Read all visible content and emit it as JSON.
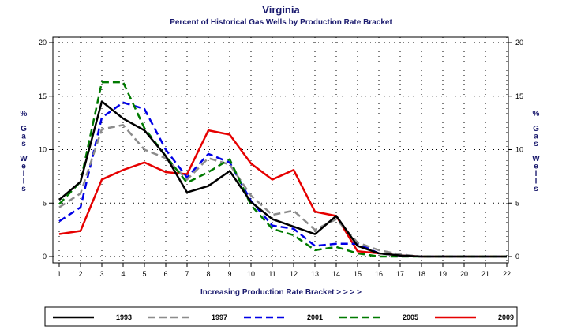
{
  "chart_data": {
    "type": "line",
    "title": "Virginia",
    "subtitle": "Percent of Historical Gas Wells by Production Rate Bracket",
    "xlabel": "Increasing Production Rate Bracket > > > >",
    "ylabel": "% Gas Wells",
    "ylabel_chars": [
      "%",
      "",
      "G",
      "a",
      "s",
      "",
      "W",
      "e",
      "l",
      "l",
      "s"
    ],
    "x": [
      1,
      2,
      3,
      4,
      5,
      6,
      7,
      8,
      9,
      10,
      11,
      12,
      13,
      14,
      15,
      16,
      17,
      18,
      19,
      20,
      21,
      22
    ],
    "xlim": [
      1,
      22
    ],
    "ylim": [
      0,
      20
    ],
    "yticks": [
      0,
      5,
      10,
      15,
      20
    ],
    "grid": true,
    "legend_position": "bottom",
    "series": [
      {
        "name": "1993",
        "color": "#000000",
        "dash": "solid",
        "values": [
          5.3,
          7.0,
          14.5,
          12.9,
          11.8,
          9.4,
          6.0,
          6.6,
          8.0,
          5.1,
          3.5,
          2.8,
          2.1,
          3.8,
          1.0,
          0.3,
          0.1,
          0.0,
          0.0,
          0.0,
          0.0,
          0.0
        ]
      },
      {
        "name": "1997",
        "color": "#8c8c8c",
        "dash": "dashed",
        "values": [
          4.6,
          5.9,
          11.9,
          12.3,
          10.0,
          9.2,
          7.2,
          9.2,
          8.6,
          5.7,
          3.9,
          4.3,
          2.5,
          3.5,
          1.3,
          0.6,
          0.2,
          0.0,
          0.0,
          0.0,
          0.0,
          0.0
        ]
      },
      {
        "name": "2001",
        "color": "#0000e6",
        "dash": "dashed",
        "values": [
          3.3,
          4.6,
          13.0,
          14.4,
          13.8,
          10.0,
          7.4,
          9.6,
          8.8,
          5.2,
          2.9,
          2.6,
          1.0,
          1.2,
          1.2,
          0.3,
          0.1,
          0.0,
          0.0,
          0.0,
          0.0,
          0.0
        ]
      },
      {
        "name": "2005",
        "color": "#007a00",
        "dash": "dashed",
        "values": [
          4.9,
          7.0,
          16.3,
          16.3,
          12.0,
          9.4,
          6.9,
          7.9,
          9.1,
          4.8,
          2.6,
          2.0,
          0.6,
          0.9,
          0.3,
          0.0,
          0.0,
          0.0,
          0.0,
          0.0,
          0.0,
          0.0
        ]
      },
      {
        "name": "2009",
        "color": "#e60000",
        "dash": "solid",
        "values": [
          2.1,
          2.4,
          7.2,
          8.1,
          8.8,
          7.9,
          7.7,
          11.8,
          11.4,
          8.7,
          7.2,
          8.1,
          4.2,
          3.8,
          0.5,
          0.3,
          0.1,
          0.0,
          0.0,
          0.0,
          0.0,
          0.0
        ]
      }
    ]
  }
}
